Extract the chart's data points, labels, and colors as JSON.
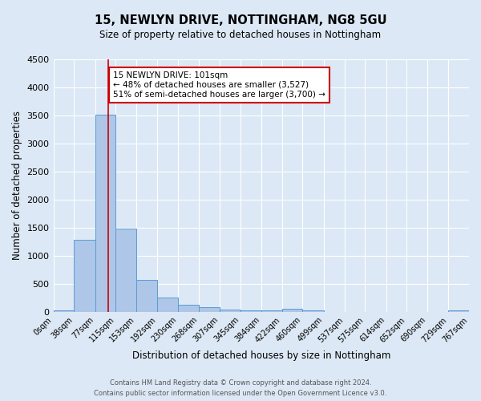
{
  "title_line1": "15, NEWLYN DRIVE, NOTTINGHAM, NG8 5GU",
  "title_line2": "Size of property relative to detached houses in Nottingham",
  "xlabel": "Distribution of detached houses by size in Nottingham",
  "ylabel": "Number of detached properties",
  "footnote1": "Contains HM Land Registry data © Crown copyright and database right 2024.",
  "footnote2": "Contains public sector information licensed under the Open Government Licence v3.0.",
  "annotation_title": "15 NEWLYN DRIVE: 101sqm",
  "annotation_line2": "← 48% of detached houses are smaller (3,527)",
  "annotation_line3": "51% of semi-detached houses are larger (3,700) →",
  "property_sqm": 101,
  "bar_edges": [
    0,
    38,
    77,
    115,
    153,
    192,
    230,
    268,
    307,
    345,
    384,
    422,
    460,
    499,
    537,
    575,
    614,
    652,
    690,
    729,
    767
  ],
  "bar_heights": [
    30,
    1280,
    3520,
    1480,
    570,
    250,
    125,
    80,
    40,
    30,
    30,
    50,
    30,
    0,
    0,
    0,
    0,
    0,
    0,
    30
  ],
  "bar_color": "#aec6e8",
  "bar_edge_color": "#5b9bd5",
  "vline_color": "#cc0000",
  "vline_x": 101,
  "ylim": [
    0,
    4500
  ],
  "yticks": [
    0,
    500,
    1000,
    1500,
    2000,
    2500,
    3000,
    3500,
    4000,
    4500
  ],
  "bg_color": "#dce8f5",
  "grid_color": "#ffffff",
  "annotation_box_color": "#ffffff",
  "annotation_box_edge": "#cc0000",
  "figsize": [
    6.0,
    5.0
  ],
  "dpi": 100
}
